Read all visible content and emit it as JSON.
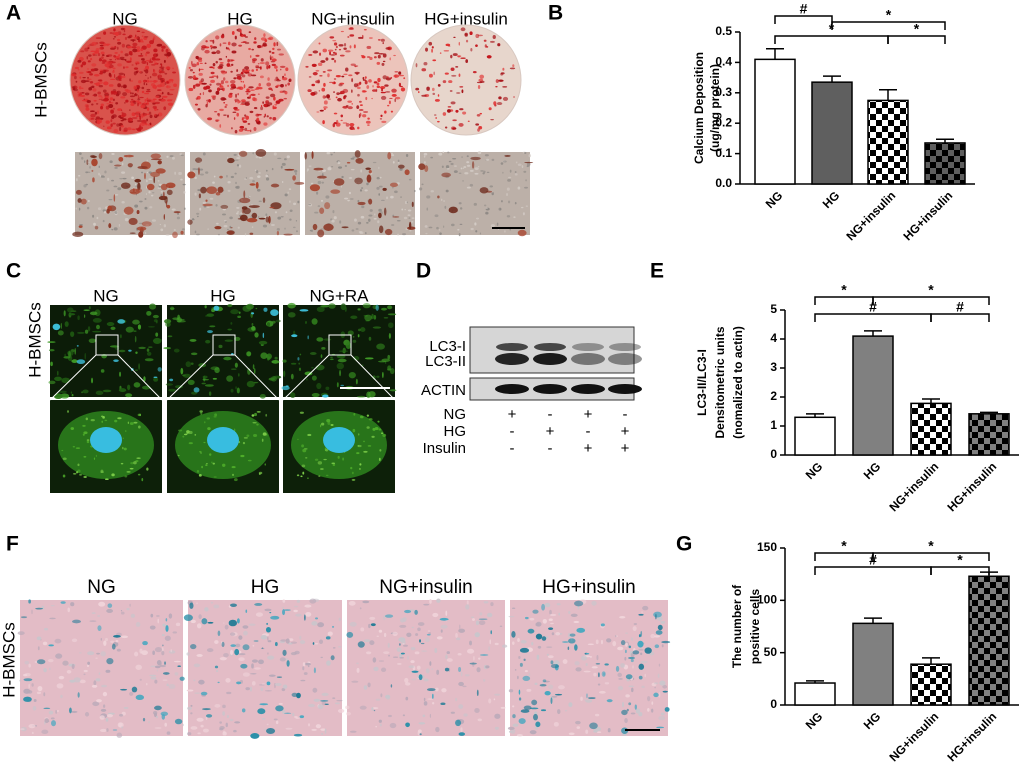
{
  "panels": {
    "A": {
      "letter": "A",
      "row_label": "H-BMSCs",
      "columns": [
        "NG",
        "HG",
        "NG+insulin",
        "HG+insulin"
      ]
    },
    "C": {
      "letter": "C",
      "row_label": "H-BMSCs",
      "columns": [
        "NG",
        "HG",
        "NG+RA"
      ]
    },
    "D": {
      "letter": "D",
      "bands": [
        "LC3-I",
        "LC3-II",
        "ACTIN"
      ],
      "conditions": [
        {
          "name": "NG",
          "signs": [
            "+",
            "-",
            "+",
            "-"
          ]
        },
        {
          "name": "HG",
          "signs": [
            "-",
            "+",
            "-",
            "+"
          ]
        },
        {
          "name": "Insulin",
          "signs": [
            "-",
            "-",
            "+",
            "+"
          ]
        }
      ]
    },
    "F": {
      "letter": "F",
      "row_label": "H-BMSCs",
      "columns": [
        "NG",
        "HG",
        "NG+insulin",
        "HG+insulin"
      ]
    }
  },
  "chart_data": [
    {
      "type": "bar",
      "label": "B",
      "y_label": [
        "Calcium Deposition",
        "(ug/mg protein)"
      ],
      "categories": [
        "NG",
        "HG",
        "NG+insulin",
        "HG+insulin"
      ],
      "values": [
        0.41,
        0.335,
        0.275,
        0.135
      ],
      "errors": [
        0.035,
        0.02,
        0.035,
        0.012
      ],
      "colors": [
        "#ffffff",
        "#5f5f5f",
        "#ffffff",
        "#5f5f5f"
      ],
      "patterns": [
        null,
        null,
        "checker",
        "checker"
      ],
      "ylim": [
        0,
        0.5
      ],
      "yticks": [
        {
          "value": 0,
          "label": "0.0"
        },
        0.1,
        0.2,
        0.3,
        0.4,
        0.5
      ],
      "annotations": [
        "#",
        "*",
        "*",
        "*"
      ]
    },
    {
      "type": "bar",
      "label": "E",
      "y_label": [
        "LC3-II/LC3-I",
        "Densitometric units",
        "(nomalized to actin)"
      ],
      "categories": [
        "NG",
        "HG",
        "NG+insulin",
        "HG+insulin"
      ],
      "values": [
        1.3,
        4.1,
        1.78,
        1.42
      ],
      "errors": [
        0.12,
        0.18,
        0.15,
        0.05
      ],
      "colors": [
        "#ffffff",
        "#808080",
        "#ffffff",
        "#808080"
      ],
      "patterns": [
        null,
        null,
        "checker",
        "checker"
      ],
      "ylim": [
        0,
        5
      ],
      "yticks": [
        0,
        1,
        2,
        3,
        4,
        5
      ],
      "annotations": [
        "*",
        "*",
        "#",
        "#"
      ]
    },
    {
      "type": "bar",
      "label": "G",
      "y_label": [
        "The number of",
        "positive cells"
      ],
      "categories": [
        "NG",
        "HG",
        "NG+insulin",
        "HG+insulin"
      ],
      "values": [
        21,
        78,
        39,
        123
      ],
      "errors": [
        2,
        5,
        6,
        4
      ],
      "colors": [
        "#ffffff",
        "#808080",
        "#ffffff",
        "#808080"
      ],
      "patterns": [
        null,
        null,
        "checker",
        "checker"
      ],
      "ylim": [
        0,
        150
      ],
      "yticks": [
        0,
        50,
        100,
        150
      ],
      "annotations": [
        "*",
        "*",
        "#",
        "*"
      ]
    }
  ]
}
